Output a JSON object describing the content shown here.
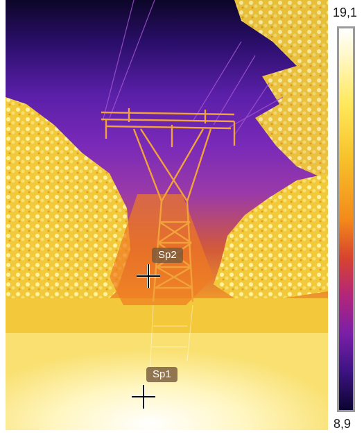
{
  "thermal_view": {
    "spots": [
      {
        "label": "Sp2"
      },
      {
        "label": "Sp1"
      }
    ]
  },
  "scale": {
    "max": "19,1",
    "min": "8,9",
    "palette": [
      "#ffffff",
      "#fff8c8",
      "#ffe85a",
      "#f7c22a",
      "#f48a1a",
      "#d8442e",
      "#b3267a",
      "#7a1fa8",
      "#3c1382",
      "#0b0430"
    ]
  }
}
